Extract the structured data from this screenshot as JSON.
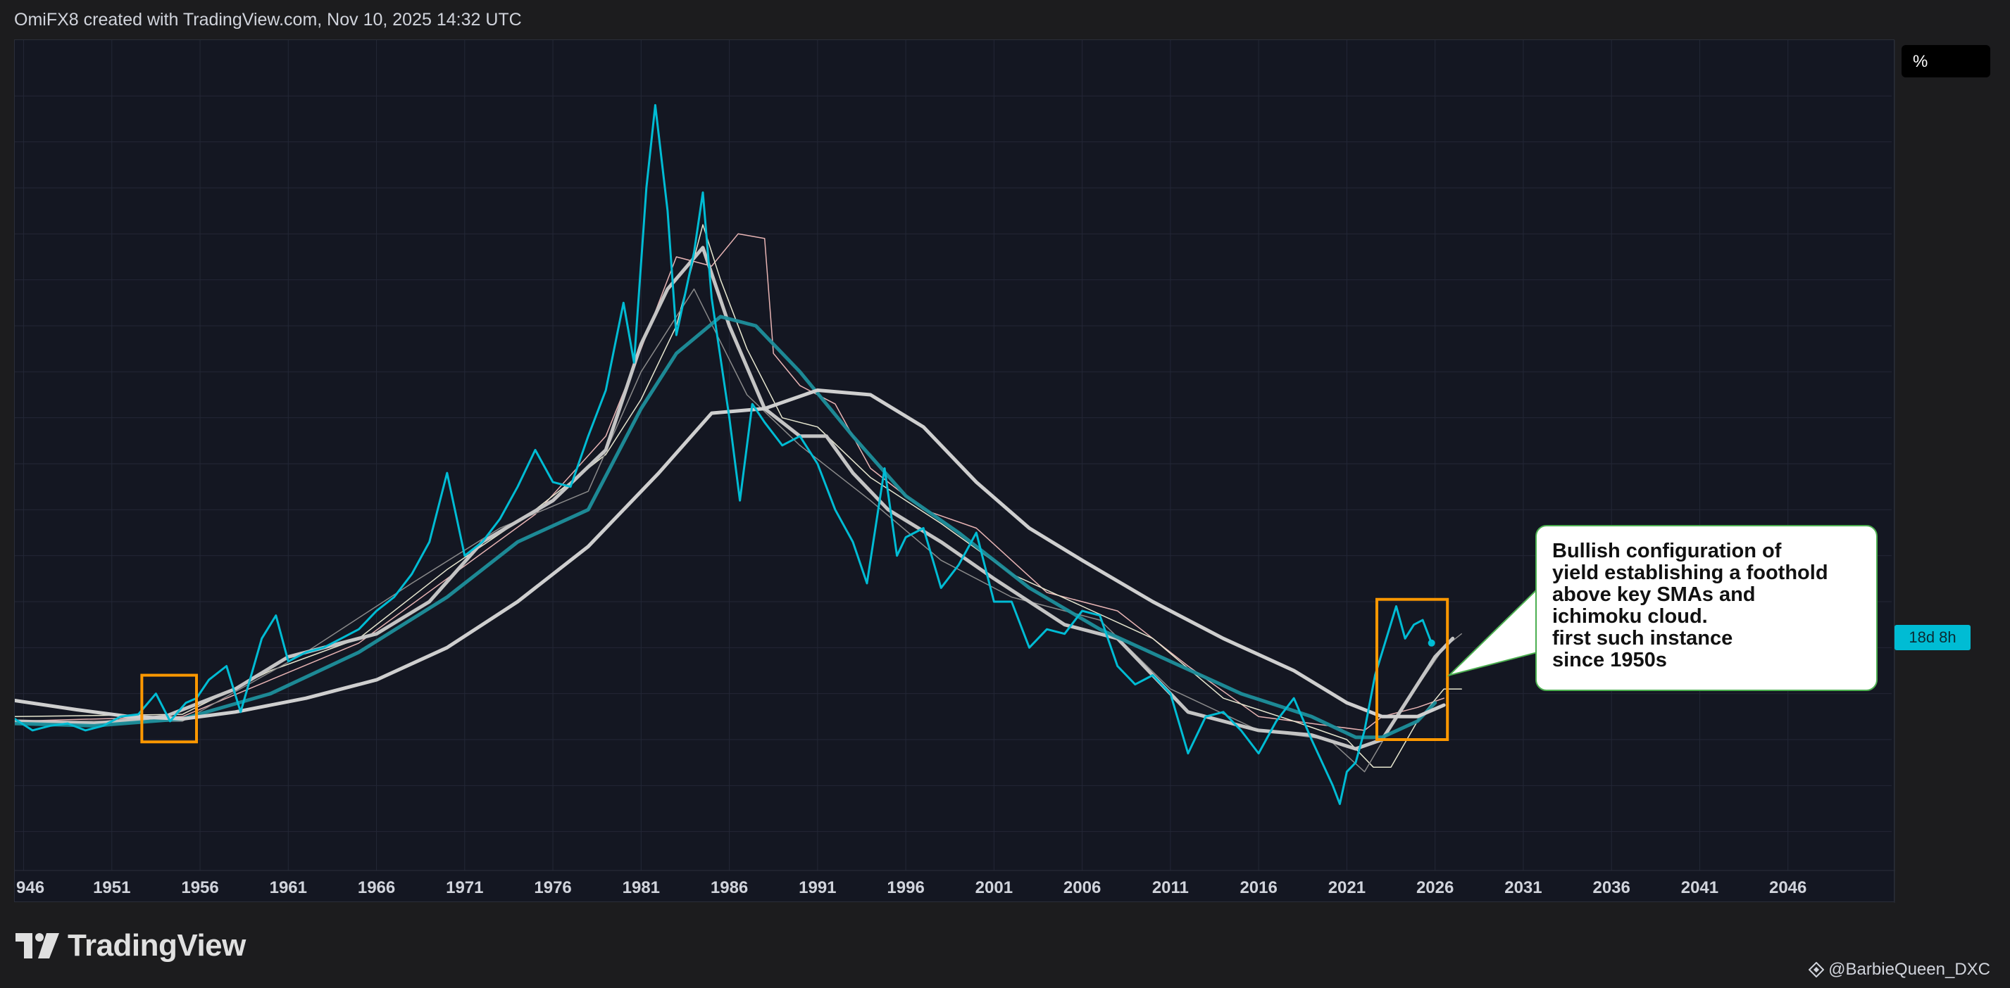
{
  "header": {
    "credit": "OmiFX8 created with TradingView.com, Nov 10, 2025 14:32 UTC"
  },
  "logo": {
    "text": "TradingView"
  },
  "watermark": {
    "text": "@BarbieQueen_DXC"
  },
  "callout": {
    "lines": [
      "Bullish configuration of",
      "yield establishing a foothold",
      "above key SMAs and",
      "ichimoku cloud.",
      "first such instance",
      "since 1950s"
    ]
  },
  "price_scale": {
    "unit": "%",
    "last_badge": "18d 8h"
  },
  "colors": {
    "background": "#141722",
    "yield_line": "#00bcd4",
    "sma_teal": "#1e8f9c",
    "sma_light": "#bdbdbd",
    "sma_long": "#cfcfcf",
    "highlight_box": "#ff9800",
    "callout_border": "#4caf50"
  },
  "chart_data": {
    "type": "line",
    "x_axis": {
      "ticks": [
        "946",
        "1951",
        "1956",
        "1961",
        "1966",
        "1971",
        "1976",
        "1981",
        "1986",
        "1991",
        "1996",
        "2001",
        "2006",
        "2011",
        "2016",
        "2021",
        "2026",
        "2031",
        "2036",
        "2041",
        "2046"
      ]
    },
    "y_axis": {
      "ticks": [
        "0.000%",
        "1.000%",
        "2.000%",
        "3.000%",
        "4.000%",
        "5.000%",
        "6.000%",
        "7.000%",
        "8.000%",
        "9.000%",
        "10.000%",
        "11.000%",
        "12.000%",
        "13.000%",
        "14.000%",
        "15.000%",
        "16.000%"
      ],
      "range": [
        -1,
        17
      ]
    },
    "x_range": [
      1945.5,
      2052
    ],
    "series": [
      {
        "key": "yield",
        "color": "#00bcd4",
        "width": 3,
        "points": [
          [
            1945.5,
            2.45
          ],
          [
            1946.5,
            2.2
          ],
          [
            1947.5,
            2.3
          ],
          [
            1948.5,
            2.35
          ],
          [
            1949.5,
            2.2
          ],
          [
            1950.5,
            2.3
          ],
          [
            1951.5,
            2.5
          ],
          [
            1952.5,
            2.55
          ],
          [
            1953.5,
            3.0
          ],
          [
            1954.3,
            2.4
          ],
          [
            1955.2,
            2.8
          ],
          [
            1955.8,
            2.9
          ],
          [
            1956.5,
            3.3
          ],
          [
            1957.5,
            3.6
          ],
          [
            1958.3,
            2.6
          ],
          [
            1959.5,
            4.2
          ],
          [
            1960.3,
            4.7
          ],
          [
            1961.0,
            3.7
          ],
          [
            1962.0,
            3.9
          ],
          [
            1963.0,
            4.0
          ],
          [
            1964.0,
            4.2
          ],
          [
            1965.0,
            4.4
          ],
          [
            1966.0,
            4.8
          ],
          [
            1967.0,
            5.1
          ],
          [
            1968.0,
            5.6
          ],
          [
            1969.0,
            6.3
          ],
          [
            1970.0,
            7.8
          ],
          [
            1971.0,
            6.0
          ],
          [
            1972.0,
            6.3
          ],
          [
            1973.0,
            6.8
          ],
          [
            1974.0,
            7.5
          ],
          [
            1975.0,
            8.3
          ],
          [
            1976.0,
            7.6
          ],
          [
            1977.0,
            7.5
          ],
          [
            1978.0,
            8.6
          ],
          [
            1979.0,
            9.6
          ],
          [
            1980.0,
            11.5
          ],
          [
            1980.6,
            10.2
          ],
          [
            1981.3,
            14.0
          ],
          [
            1981.8,
            15.8
          ],
          [
            1982.5,
            13.5
          ],
          [
            1983.0,
            10.8
          ],
          [
            1984.0,
            12.6
          ],
          [
            1984.5,
            13.9
          ],
          [
            1985.0,
            11.6
          ],
          [
            1986.0,
            9.0
          ],
          [
            1986.6,
            7.2
          ],
          [
            1987.3,
            9.3
          ],
          [
            1988.0,
            8.9
          ],
          [
            1989.0,
            8.4
          ],
          [
            1990.0,
            8.6
          ],
          [
            1991.0,
            8.0
          ],
          [
            1992.0,
            7.0
          ],
          [
            1993.0,
            6.3
          ],
          [
            1993.8,
            5.4
          ],
          [
            1994.8,
            7.9
          ],
          [
            1995.5,
            6.0
          ],
          [
            1996.0,
            6.4
          ],
          [
            1997.0,
            6.6
          ],
          [
            1998.0,
            5.3
          ],
          [
            1999.0,
            5.8
          ],
          [
            2000.0,
            6.5
          ],
          [
            2001.0,
            5.0
          ],
          [
            2002.0,
            5.0
          ],
          [
            2003.0,
            4.0
          ],
          [
            2004.0,
            4.4
          ],
          [
            2005.0,
            4.3
          ],
          [
            2006.0,
            4.8
          ],
          [
            2007.0,
            4.7
          ],
          [
            2008.0,
            3.6
          ],
          [
            2009.0,
            3.2
          ],
          [
            2010.0,
            3.4
          ],
          [
            2011.0,
            3.0
          ],
          [
            2012.0,
            1.7
          ],
          [
            2013.0,
            2.5
          ],
          [
            2014.0,
            2.6
          ],
          [
            2015.0,
            2.2
          ],
          [
            2016.0,
            1.7
          ],
          [
            2017.0,
            2.4
          ],
          [
            2018.0,
            2.9
          ],
          [
            2019.0,
            2.0
          ],
          [
            2020.2,
            1.0
          ],
          [
            2020.6,
            0.6
          ],
          [
            2021.0,
            1.3
          ],
          [
            2021.5,
            1.5
          ],
          [
            2022.0,
            2.2
          ],
          [
            2022.6,
            3.4
          ],
          [
            2023.0,
            3.9
          ],
          [
            2023.8,
            4.9
          ],
          [
            2024.3,
            4.2
          ],
          [
            2024.8,
            4.5
          ],
          [
            2025.3,
            4.6
          ],
          [
            2025.8,
            4.1
          ]
        ]
      },
      {
        "key": "sma_short",
        "color": "#c4c4c4",
        "width": 5,
        "points": [
          [
            1945.5,
            2.4
          ],
          [
            1950,
            2.35
          ],
          [
            1954,
            2.5
          ],
          [
            1958,
            3.1
          ],
          [
            1961,
            3.8
          ],
          [
            1966,
            4.3
          ],
          [
            1969,
            5.0
          ],
          [
            1972,
            6.3
          ],
          [
            1976,
            7.2
          ],
          [
            1979,
            8.3
          ],
          [
            1981,
            10.6
          ],
          [
            1982.5,
            11.8
          ],
          [
            1984.5,
            12.7
          ],
          [
            1986,
            11.0
          ],
          [
            1988,
            9.2
          ],
          [
            1990,
            8.6
          ],
          [
            1991.5,
            8.6
          ],
          [
            1993,
            7.8
          ],
          [
            1995,
            7.0
          ],
          [
            1998,
            6.3
          ],
          [
            2001,
            5.5
          ],
          [
            2005,
            4.5
          ],
          [
            2008,
            4.2
          ],
          [
            2012,
            2.6
          ],
          [
            2016,
            2.2
          ],
          [
            2019,
            2.1
          ],
          [
            2021.5,
            1.8
          ],
          [
            2023,
            2.0
          ],
          [
            2024.5,
            2.9
          ],
          [
            2026,
            3.8
          ],
          [
            2027,
            4.2
          ]
        ]
      },
      {
        "key": "sma_mid",
        "color": "#1e8f9c",
        "width": 5,
        "points": [
          [
            1945.5,
            2.35
          ],
          [
            1950,
            2.3
          ],
          [
            1955,
            2.45
          ],
          [
            1960,
            3.0
          ],
          [
            1965,
            3.9
          ],
          [
            1970,
            5.1
          ],
          [
            1974,
            6.3
          ],
          [
            1978,
            7.0
          ],
          [
            1981,
            9.2
          ],
          [
            1983,
            10.4
          ],
          [
            1985.5,
            11.2
          ],
          [
            1987.5,
            11.0
          ],
          [
            1990,
            10.0
          ],
          [
            1993,
            8.6
          ],
          [
            1996,
            7.3
          ],
          [
            1999,
            6.5
          ],
          [
            2003,
            5.3
          ],
          [
            2007,
            4.4
          ],
          [
            2011,
            3.7
          ],
          [
            2015,
            3.0
          ],
          [
            2019,
            2.5
          ],
          [
            2021.5,
            2.05
          ],
          [
            2023,
            2.05
          ],
          [
            2025,
            2.4
          ],
          [
            2026,
            2.8
          ]
        ]
      },
      {
        "key": "sma_long",
        "color": "#cfcfcf",
        "width": 5,
        "points": [
          [
            1945.5,
            2.85
          ],
          [
            1949,
            2.65
          ],
          [
            1952,
            2.5
          ],
          [
            1955,
            2.45
          ],
          [
            1958,
            2.6
          ],
          [
            1962,
            2.9
          ],
          [
            1966,
            3.3
          ],
          [
            1970,
            4.0
          ],
          [
            1974,
            5.0
          ],
          [
            1978,
            6.2
          ],
          [
            1982,
            7.8
          ],
          [
            1985,
            9.1
          ],
          [
            1988,
            9.2
          ],
          [
            1991,
            9.6
          ],
          [
            1994,
            9.5
          ],
          [
            1997,
            8.8
          ],
          [
            2000,
            7.6
          ],
          [
            2003,
            6.6
          ],
          [
            2006,
            5.9
          ],
          [
            2010,
            5.0
          ],
          [
            2014,
            4.2
          ],
          [
            2018,
            3.5
          ],
          [
            2021,
            2.8
          ],
          [
            2023,
            2.5
          ],
          [
            2025,
            2.5
          ],
          [
            2026.5,
            2.75
          ]
        ]
      },
      {
        "key": "cloud_a",
        "color": "#e8b4b4",
        "width": 1.5,
        "points": [
          [
            1945.5,
            2.4
          ],
          [
            1955,
            2.5
          ],
          [
            1960,
            3.3
          ],
          [
            1965,
            4.1
          ],
          [
            1970,
            5.5
          ],
          [
            1975,
            6.9
          ],
          [
            1979,
            8.6
          ],
          [
            1981,
            10.5
          ],
          [
            1983,
            12.5
          ],
          [
            1985,
            12.3
          ],
          [
            1986.5,
            13.0
          ],
          [
            1988,
            12.9
          ],
          [
            1988.5,
            10.4
          ],
          [
            1990,
            9.7
          ],
          [
            1992,
            9.3
          ],
          [
            1994,
            7.9
          ],
          [
            1997,
            7.0
          ],
          [
            2000,
            6.6
          ],
          [
            2004,
            5.2
          ],
          [
            2008,
            4.8
          ],
          [
            2012,
            3.6
          ],
          [
            2016,
            2.5
          ],
          [
            2020,
            2.3
          ],
          [
            2022,
            2.2
          ],
          [
            2023,
            2.5
          ],
          [
            2025,
            2.7
          ],
          [
            2026.5,
            2.9
          ]
        ]
      },
      {
        "key": "cloud_b",
        "color": "#e6e6cf",
        "width": 1.5,
        "points": [
          [
            1945.5,
            2.5
          ],
          [
            1955,
            2.55
          ],
          [
            1960,
            3.5
          ],
          [
            1965,
            4.2
          ],
          [
            1970,
            5.7
          ],
          [
            1975,
            7.0
          ],
          [
            1979,
            8.2
          ],
          [
            1981,
            9.4
          ],
          [
            1983,
            11.0
          ],
          [
            1984.5,
            13.2
          ],
          [
            1985.5,
            12.0
          ],
          [
            1987,
            10.5
          ],
          [
            1989,
            9.0
          ],
          [
            1991,
            8.8
          ],
          [
            1994,
            7.7
          ],
          [
            1998,
            6.7
          ],
          [
            2002,
            5.6
          ],
          [
            2006,
            4.9
          ],
          [
            2010,
            4.2
          ],
          [
            2014,
            2.9
          ],
          [
            2018,
            2.4
          ],
          [
            2021,
            2.0
          ],
          [
            2022.5,
            1.4
          ],
          [
            2023.5,
            1.4
          ],
          [
            2025,
            2.4
          ],
          [
            2026.5,
            3.1
          ],
          [
            2027.5,
            3.1
          ]
        ]
      },
      {
        "key": "lagging",
        "color": "#8a8a8a",
        "width": 1.5,
        "points": [
          [
            1945.5,
            2.4
          ],
          [
            1955,
            2.4
          ],
          [
            1962,
            3.9
          ],
          [
            1968,
            5.4
          ],
          [
            1973,
            6.6
          ],
          [
            1978,
            7.4
          ],
          [
            1981,
            10.0
          ],
          [
            1984,
            11.8
          ],
          [
            1987,
            9.5
          ],
          [
            1990,
            8.4
          ],
          [
            1994,
            7.2
          ],
          [
            1998,
            5.9
          ],
          [
            2002,
            5.1
          ],
          [
            2007,
            4.6
          ],
          [
            2011,
            3.1
          ],
          [
            2016,
            2.2
          ],
          [
            2020,
            2.0
          ],
          [
            2022,
            1.3
          ],
          [
            2024,
            2.6
          ],
          [
            2026.5,
            4.0
          ],
          [
            2027.5,
            4.3
          ]
        ]
      }
    ],
    "highlights": [
      {
        "x0": 1952.7,
        "x1": 1955.8,
        "y0": 1.95,
        "y1": 3.4
      },
      {
        "x0": 2022.7,
        "x1": 2026.7,
        "y0": 2.0,
        "y1": 5.05
      }
    ],
    "last_marker": {
      "x": 2025.8,
      "y": 4.1
    },
    "callout_pointer": {
      "x": 2026.8,
      "y": 3.4
    }
  }
}
